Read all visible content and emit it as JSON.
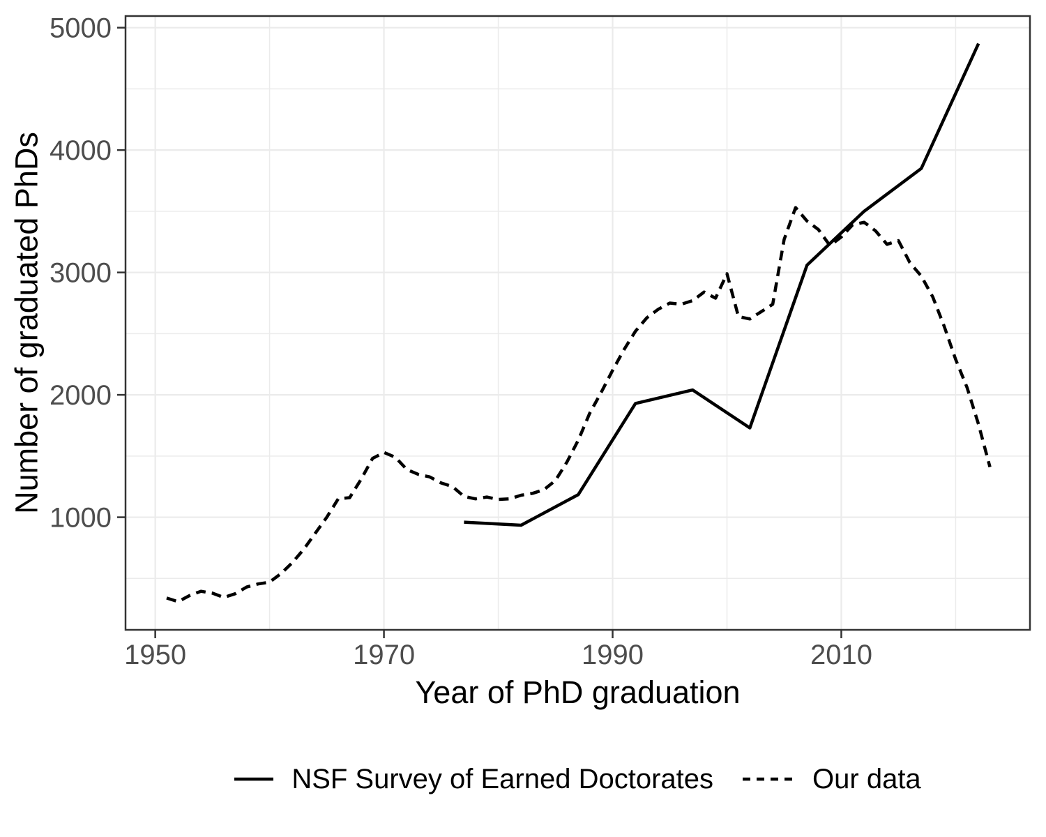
{
  "chart_data": {
    "type": "line",
    "title": "",
    "xlabel": "Year of PhD graduation",
    "ylabel": "Number of graduated PhDs",
    "x_ticks": [
      1950,
      1970,
      1990,
      2010
    ],
    "x_minor_ticks": [
      1960,
      1980,
      2000,
      2020
    ],
    "y_ticks": [
      1000,
      2000,
      3000,
      4000,
      5000
    ],
    "y_minor_ticks": [
      500,
      1500,
      2500,
      3500,
      4500
    ],
    "x_domain": [
      1947.4,
      2026.5
    ],
    "y_domain": [
      80,
      5095
    ],
    "grid": "on",
    "legend_position": "bottom",
    "colors": {
      "line": "#000000",
      "grid": "#EBEBEB",
      "panel_border": "#333333",
      "tick_mark": "#333333",
      "tick_label": "#4D4D4D",
      "axis_title": "#000000",
      "background": "#FFFFFF"
    },
    "series": [
      {
        "name": "NSF Survey of Earned Doctorates",
        "style": "solid",
        "color": "#000000",
        "x": [
          1977,
          1982,
          1987,
          1992,
          1997,
          2002,
          2007,
          2012,
          2017,
          2022
        ],
        "values": [
          960,
          935,
          1185,
          1930,
          2040,
          1730,
          3060,
          3500,
          3850,
          4870
        ]
      },
      {
        "name": "Our data",
        "style": "dashed",
        "color": "#000000",
        "x": [
          1951,
          1952,
          1953,
          1954,
          1955,
          1956,
          1957,
          1958,
          1959,
          1960,
          1961,
          1962,
          1963,
          1964,
          1965,
          1966,
          1967,
          1968,
          1969,
          1970,
          1971,
          1972,
          1973,
          1974,
          1975,
          1976,
          1977,
          1978,
          1979,
          1980,
          1981,
          1982,
          1983,
          1984,
          1985,
          1986,
          1987,
          1988,
          1989,
          1990,
          1991,
          1992,
          1993,
          1994,
          1995,
          1996,
          1997,
          1998,
          1999,
          2000,
          2001,
          2002,
          2003,
          2004,
          2005,
          2006,
          2007,
          2008,
          2009,
          2010,
          2011,
          2012,
          2013,
          2014,
          2015,
          2016,
          2017,
          2018,
          2019,
          2020,
          2021,
          2022,
          2023
        ],
        "values": [
          340,
          310,
          360,
          395,
          380,
          345,
          375,
          430,
          455,
          470,
          540,
          630,
          740,
          870,
          1000,
          1150,
          1160,
          1310,
          1480,
          1530,
          1490,
          1390,
          1350,
          1330,
          1280,
          1250,
          1170,
          1150,
          1165,
          1145,
          1150,
          1180,
          1195,
          1225,
          1300,
          1450,
          1630,
          1850,
          2020,
          2200,
          2370,
          2520,
          2630,
          2700,
          2750,
          2740,
          2770,
          2840,
          2790,
          2990,
          2640,
          2620,
          2680,
          2740,
          3270,
          3530,
          3420,
          3350,
          3220,
          3290,
          3390,
          3410,
          3340,
          3230,
          3260,
          3080,
          2970,
          2800,
          2560,
          2290,
          2060,
          1760,
          1410
        ]
      }
    ]
  },
  "legend": {
    "items": [
      {
        "label": "NSF Survey of Earned Doctorates",
        "key": "solid-line"
      },
      {
        "label": "Our data",
        "key": "dashed-line"
      }
    ]
  }
}
